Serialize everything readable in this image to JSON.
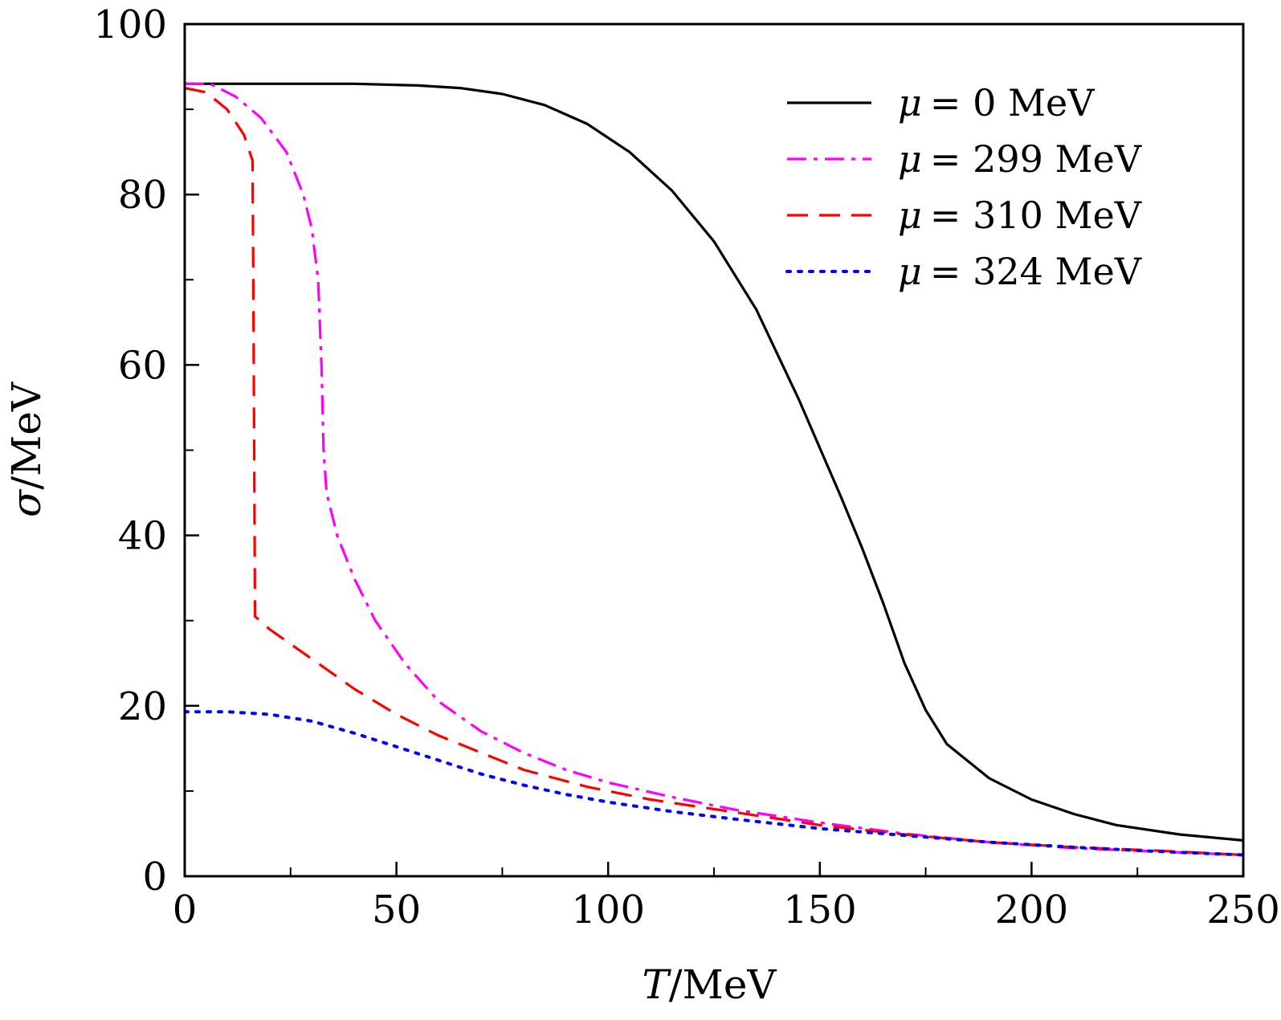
{
  "chart_data": {
    "type": "line",
    "title": "",
    "xlabel": {
      "symbol": "T",
      "unit": "/MeV"
    },
    "ylabel": {
      "symbol": "σ",
      "unit": "/MeV"
    },
    "xlim": [
      0,
      250
    ],
    "ylim": [
      0,
      100
    ],
    "x_ticks": [
      0,
      50,
      100,
      150,
      200,
      250
    ],
    "x_tick_labels": [
      "0",
      "50",
      "100",
      "150",
      "200",
      "250"
    ],
    "x_minor_ticks": [
      25,
      75,
      125,
      175,
      225
    ],
    "y_ticks": [
      0,
      20,
      40,
      60,
      80,
      100
    ],
    "y_tick_labels": [
      "0",
      "20",
      "40",
      "60",
      "80",
      "100"
    ],
    "y_minor_ticks": [
      10,
      30,
      50,
      70,
      90
    ],
    "grid": false,
    "legend_position": "top-right",
    "series": [
      {
        "name": "μ = 0 MeV",
        "legend_symbol": "μ",
        "legend_value": "= 0 MeV",
        "color": "#000000",
        "style": "solid",
        "points": [
          [
            0,
            93.0
          ],
          [
            20,
            93.0
          ],
          [
            40,
            93.0
          ],
          [
            55,
            92.8
          ],
          [
            65,
            92.5
          ],
          [
            75,
            91.8
          ],
          [
            85,
            90.5
          ],
          [
            95,
            88.3
          ],
          [
            105,
            85.0
          ],
          [
            115,
            80.5
          ],
          [
            125,
            74.5
          ],
          [
            135,
            66.5
          ],
          [
            145,
            56.0
          ],
          [
            155,
            44.5
          ],
          [
            160,
            38.5
          ],
          [
            165,
            32.0
          ],
          [
            170,
            25.0
          ],
          [
            175,
            19.5
          ],
          [
            180,
            15.5
          ],
          [
            190,
            11.5
          ],
          [
            200,
            9.0
          ],
          [
            210,
            7.3
          ],
          [
            220,
            6.0
          ],
          [
            235,
            4.9
          ],
          [
            250,
            4.2
          ]
        ]
      },
      {
        "name": "μ = 299 MeV",
        "legend_symbol": "μ",
        "legend_value": "= 299 MeV",
        "color": "#ff00ff",
        "style": "dashdot",
        "points": [
          [
            0,
            93.0
          ],
          [
            6,
            93.0
          ],
          [
            12,
            91.5
          ],
          [
            18,
            89.0
          ],
          [
            24,
            85.0
          ],
          [
            28,
            80.0
          ],
          [
            30,
            76.0
          ],
          [
            31.5,
            70.0
          ],
          [
            32.3,
            60.0
          ],
          [
            32.8,
            50.0
          ],
          [
            33.5,
            45.0
          ],
          [
            36,
            40.0
          ],
          [
            40,
            35.0
          ],
          [
            45,
            30.0
          ],
          [
            52,
            25.0
          ],
          [
            60,
            20.5
          ],
          [
            70,
            17.0
          ],
          [
            80,
            14.5
          ],
          [
            90,
            12.5
          ],
          [
            100,
            11.0
          ],
          [
            115,
            9.3
          ],
          [
            130,
            7.8
          ],
          [
            150,
            6.3
          ],
          [
            170,
            5.0
          ],
          [
            190,
            4.0
          ],
          [
            210,
            3.3
          ],
          [
            230,
            2.9
          ],
          [
            250,
            2.5
          ]
        ]
      },
      {
        "name": "μ = 310 MeV",
        "legend_symbol": "μ",
        "legend_value": "= 310 MeV",
        "color": "#ff0000",
        "style": "dashed",
        "points": [
          [
            0,
            92.5
          ],
          [
            5,
            92.0
          ],
          [
            10,
            90.0
          ],
          [
            14,
            87.0
          ],
          [
            16,
            84.0
          ],
          [
            16.2,
            70.0
          ],
          [
            16.4,
            50.0
          ],
          [
            16.6,
            30.5
          ],
          [
            20,
            29.0
          ],
          [
            30,
            25.5
          ],
          [
            40,
            22.0
          ],
          [
            50,
            19.0
          ],
          [
            60,
            16.5
          ],
          [
            70,
            14.5
          ],
          [
            80,
            12.5
          ],
          [
            95,
            10.5
          ],
          [
            110,
            9.0
          ],
          [
            130,
            7.5
          ],
          [
            150,
            6.0
          ],
          [
            170,
            4.9
          ],
          [
            190,
            4.0
          ],
          [
            210,
            3.4
          ],
          [
            230,
            3.0
          ],
          [
            250,
            2.5
          ]
        ]
      },
      {
        "name": "μ = 324 MeV",
        "legend_symbol": "μ",
        "legend_value": "= 324 MeV",
        "color": "#0000ff",
        "style": "dotted",
        "points": [
          [
            0,
            19.3
          ],
          [
            10,
            19.3
          ],
          [
            20,
            19.0
          ],
          [
            30,
            18.2
          ],
          [
            40,
            16.8
          ],
          [
            50,
            15.2
          ],
          [
            60,
            13.6
          ],
          [
            70,
            12.0
          ],
          [
            80,
            10.7
          ],
          [
            90,
            9.6
          ],
          [
            100,
            8.7
          ],
          [
            115,
            7.6
          ],
          [
            130,
            6.7
          ],
          [
            150,
            5.6
          ],
          [
            170,
            4.8
          ],
          [
            190,
            4.0
          ],
          [
            210,
            3.4
          ],
          [
            230,
            2.9
          ],
          [
            250,
            2.5
          ]
        ]
      }
    ]
  }
}
